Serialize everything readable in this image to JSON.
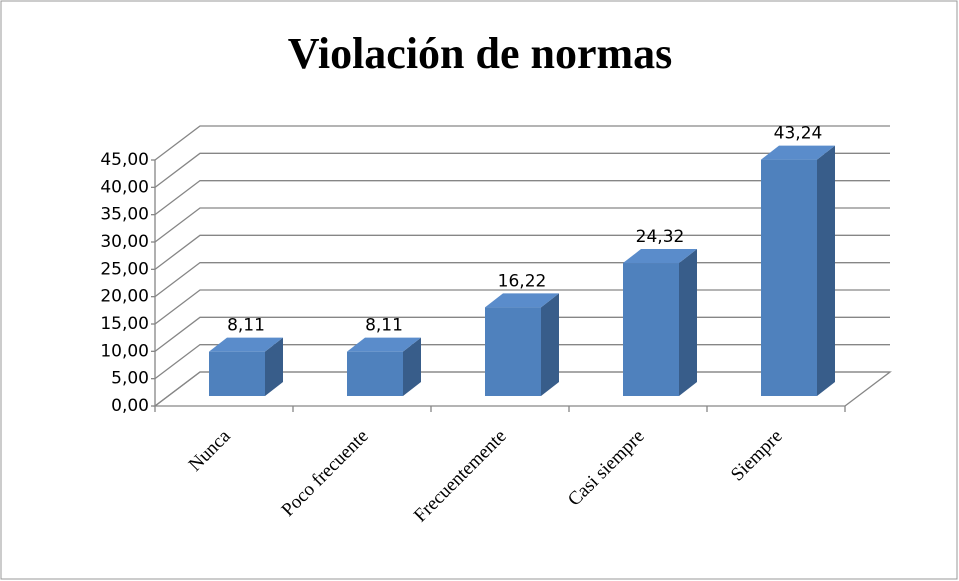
{
  "chart_data": {
    "type": "bar3d",
    "title": "Violación de normas",
    "categories": [
      "Nunca",
      "Poco frecuente",
      "Frecuentemente",
      "Casi siempre",
      "Siempre"
    ],
    "values": [
      8.11,
      8.11,
      16.22,
      24.32,
      43.24
    ],
    "value_labels": [
      "8,11",
      "8,11",
      "16,22",
      "24,32",
      "43,24"
    ],
    "color": "#4f81bd",
    "ylim": [
      0,
      45
    ],
    "yticks": [
      {
        "value": 0,
        "label": "0,00"
      },
      {
        "value": 5,
        "label": "5,00"
      },
      {
        "value": 10,
        "label": "10,00"
      },
      {
        "value": 15,
        "label": "15,00"
      },
      {
        "value": 20,
        "label": "20,00"
      },
      {
        "value": 25,
        "label": "25,00"
      },
      {
        "value": 30,
        "label": "30,00"
      },
      {
        "value": 35,
        "label": "35,00"
      },
      {
        "value": 40,
        "label": "40,00"
      },
      {
        "value": 45,
        "label": "45,00"
      }
    ],
    "grid": true
  }
}
